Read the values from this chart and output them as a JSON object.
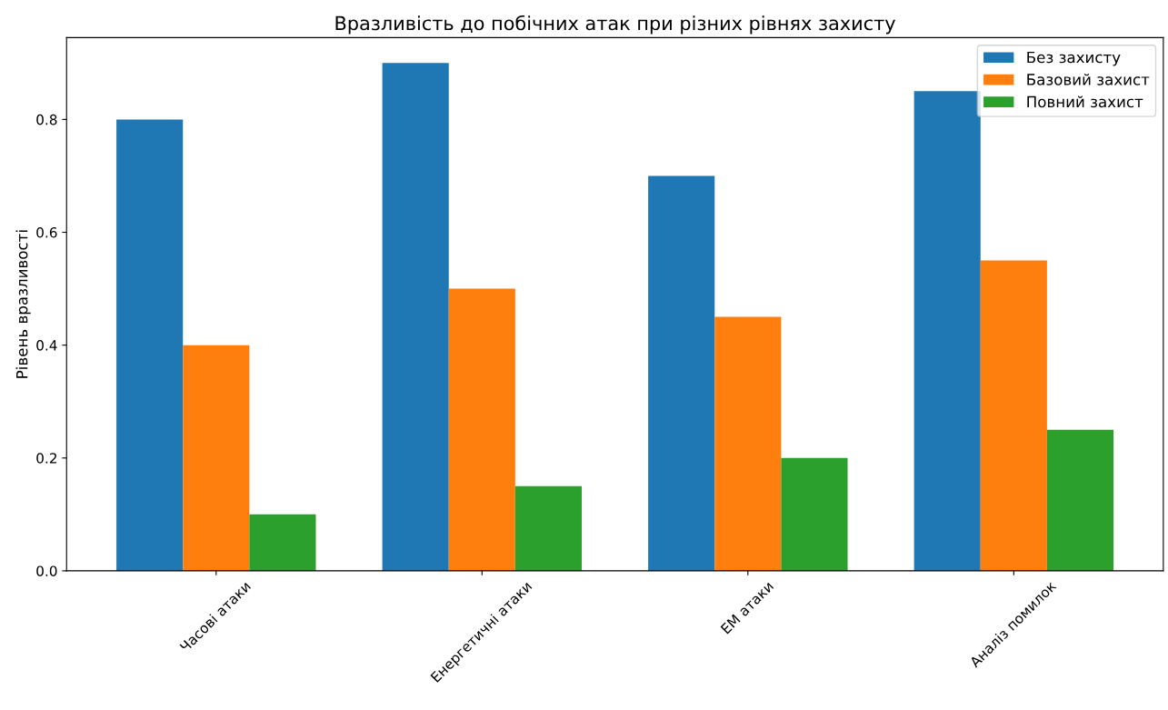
{
  "chart_data": {
    "type": "bar",
    "title": "Вразливість до побічних атак при різних рівнях захисту",
    "ylabel": "Рівень вразливості",
    "categories": [
      "Часові атаки",
      "Енергетичні атаки",
      "ЕМ атаки",
      "Аналіз помилок"
    ],
    "series": [
      {
        "name": "Без захисту",
        "color": "#1f77b4",
        "values": [
          0.8,
          0.9,
          0.7,
          0.85
        ]
      },
      {
        "name": "Базовий захист",
        "color": "#ff7f0e",
        "values": [
          0.4,
          0.5,
          0.45,
          0.55
        ]
      },
      {
        "name": "Повний захист",
        "color": "#2ca02c",
        "values": [
          0.1,
          0.15,
          0.2,
          0.25
        ]
      }
    ],
    "ylim": [
      0,
      0.945
    ],
    "yticks": [
      {
        "value": 0,
        "label": "0.0"
      },
      {
        "value": 0.2,
        "label": "0.2"
      },
      {
        "value": 0.4,
        "label": "0.4"
      },
      {
        "value": 0.6,
        "label": "0.6"
      },
      {
        "value": 0.8,
        "label": "0.8"
      }
    ],
    "grid": false,
    "legend": "top right"
  }
}
